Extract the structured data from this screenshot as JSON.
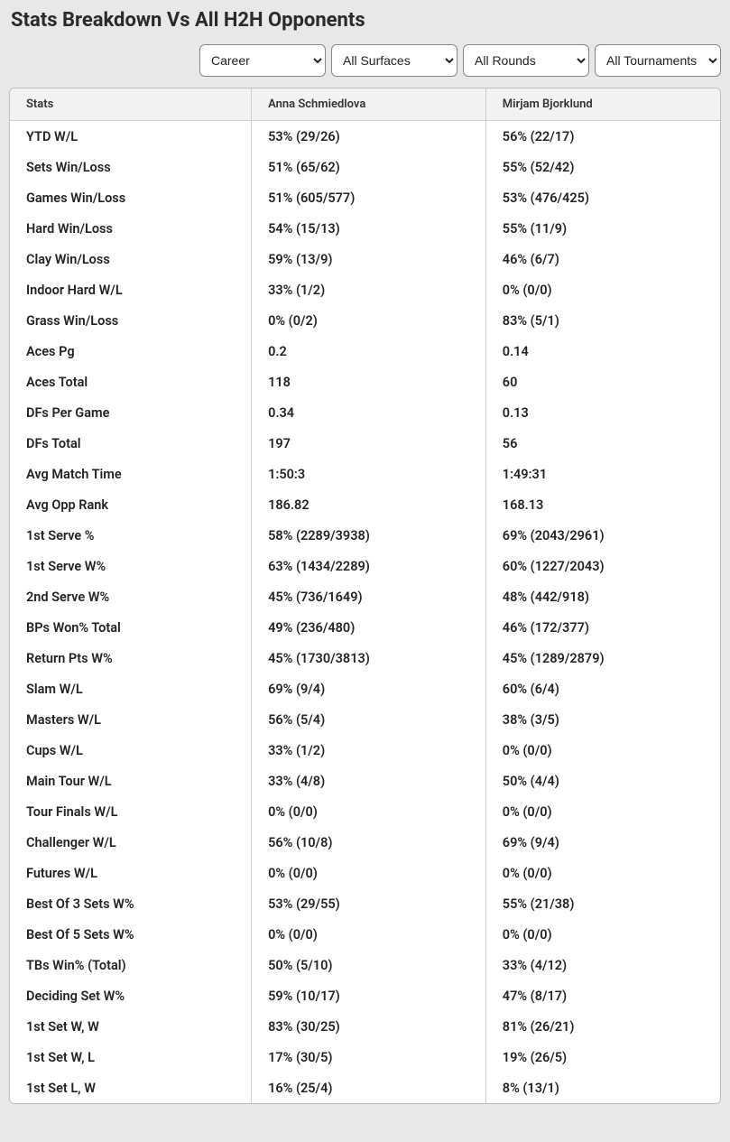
{
  "title": "Stats Breakdown Vs All H2H Opponents",
  "filters": {
    "period": {
      "selected": "Career"
    },
    "surface": {
      "selected": "All Surfaces"
    },
    "round": {
      "selected": "All Rounds"
    },
    "tournament": {
      "selected": "All Tournaments"
    }
  },
  "table": {
    "headers": {
      "stats": "Stats",
      "player1": "Anna Schmiedlova",
      "player2": "Mirjam Bjorklund"
    },
    "rows": [
      {
        "stat": "YTD W/L",
        "p1": "53% (29/26)",
        "p2": "56% (22/17)"
      },
      {
        "stat": "Sets Win/Loss",
        "p1": "51% (65/62)",
        "p2": "55% (52/42)"
      },
      {
        "stat": "Games Win/Loss",
        "p1": "51% (605/577)",
        "p2": "53% (476/425)"
      },
      {
        "stat": "Hard Win/Loss",
        "p1": "54% (15/13)",
        "p2": "55% (11/9)"
      },
      {
        "stat": "Clay Win/Loss",
        "p1": "59% (13/9)",
        "p2": "46% (6/7)"
      },
      {
        "stat": "Indoor Hard W/L",
        "p1": "33% (1/2)",
        "p2": "0% (0/0)"
      },
      {
        "stat": "Grass Win/Loss",
        "p1": "0% (0/2)",
        "p2": "83% (5/1)"
      },
      {
        "stat": "Aces Pg",
        "p1": "0.2",
        "p2": "0.14"
      },
      {
        "stat": "Aces Total",
        "p1": "118",
        "p2": "60"
      },
      {
        "stat": "DFs Per Game",
        "p1": "0.34",
        "p2": "0.13"
      },
      {
        "stat": "DFs Total",
        "p1": "197",
        "p2": "56"
      },
      {
        "stat": "Avg Match Time",
        "p1": "1:50:3",
        "p2": "1:49:31"
      },
      {
        "stat": "Avg Opp Rank",
        "p1": "186.82",
        "p2": "168.13"
      },
      {
        "stat": "1st Serve %",
        "p1": "58% (2289/3938)",
        "p2": "69% (2043/2961)"
      },
      {
        "stat": "1st Serve W%",
        "p1": "63% (1434/2289)",
        "p2": "60% (1227/2043)"
      },
      {
        "stat": "2nd Serve W%",
        "p1": "45% (736/1649)",
        "p2": "48% (442/918)"
      },
      {
        "stat": "BPs Won% Total",
        "p1": "49% (236/480)",
        "p2": "46% (172/377)"
      },
      {
        "stat": "Return Pts W%",
        "p1": "45% (1730/3813)",
        "p2": "45% (1289/2879)"
      },
      {
        "stat": "Slam W/L",
        "p1": "69% (9/4)",
        "p2": "60% (6/4)"
      },
      {
        "stat": "Masters W/L",
        "p1": "56% (5/4)",
        "p2": "38% (3/5)"
      },
      {
        "stat": "Cups W/L",
        "p1": "33% (1/2)",
        "p2": "0% (0/0)"
      },
      {
        "stat": "Main Tour W/L",
        "p1": "33% (4/8)",
        "p2": "50% (4/4)"
      },
      {
        "stat": "Tour Finals W/L",
        "p1": "0% (0/0)",
        "p2": "0% (0/0)"
      },
      {
        "stat": "Challenger W/L",
        "p1": "56% (10/8)",
        "p2": "69% (9/4)"
      },
      {
        "stat": "Futures W/L",
        "p1": "0% (0/0)",
        "p2": "0% (0/0)"
      },
      {
        "stat": "Best Of 3 Sets W%",
        "p1": "53% (29/55)",
        "p2": "55% (21/38)"
      },
      {
        "stat": "Best Of 5 Sets W%",
        "p1": "0% (0/0)",
        "p2": "0% (0/0)"
      },
      {
        "stat": "TBs Win% (Total)",
        "p1": "50% (5/10)",
        "p2": "33% (4/12)"
      },
      {
        "stat": "Deciding Set W%",
        "p1": "59% (10/17)",
        "p2": "47% (8/17)"
      },
      {
        "stat": "1st Set W, W",
        "p1": "83% (30/25)",
        "p2": "81% (26/21)"
      },
      {
        "stat": "1st Set W, L",
        "p1": "17% (30/5)",
        "p2": "19% (26/5)"
      },
      {
        "stat": "1st Set L, W",
        "p1": "16% (25/4)",
        "p2": "8% (13/1)"
      }
    ]
  }
}
